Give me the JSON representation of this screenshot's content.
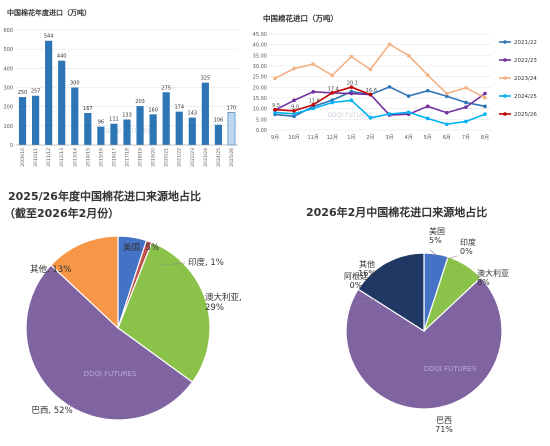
{
  "chart_data": [
    {
      "type": "bar",
      "title": "中国棉花年度进口（万吨）",
      "categories": [
        "2009/10",
        "2010/11",
        "2011/12",
        "2012/13",
        "2013/14",
        "2014/15",
        "2015/16",
        "2016/17",
        "2017/18",
        "2018/19",
        "2019/20",
        "2020/21",
        "2021/22",
        "2022/23",
        "2023/24",
        "2024/25",
        "2025/26"
      ],
      "values": [
        250,
        257,
        544,
        440,
        300,
        167,
        96,
        111,
        133,
        203,
        160,
        275,
        174,
        143,
        325,
        106,
        170
      ],
      "ylim": [
        0,
        600
      ],
      "yticks": [
        0,
        100,
        200,
        300,
        400,
        500,
        600
      ],
      "grid": true,
      "watermark": "DDQI FUTURES",
      "colors": {
        "bar": "#2e75b6",
        "last_bar_fill": "#bdd7ee",
        "last_bar_stroke": "#2e75b6"
      }
    },
    {
      "type": "line",
      "title": "中国棉花进口（万吨）",
      "categories": [
        "9月",
        "10月",
        "11月",
        "12月",
        "1月",
        "2月",
        "3月",
        "4月",
        "5月",
        "6月",
        "7月",
        "8月"
      ],
      "ylim": [
        0,
        45
      ],
      "yticks": [
        "0.00",
        "5.00",
        "10.00",
        "15.00",
        "20.00",
        "25.00",
        "30.00",
        "35.00",
        "40.00",
        "45.00"
      ],
      "legend": "right",
      "grid": true,
      "series": [
        {
          "name": "2021/22",
          "color": "#2e75b6",
          "values": [
            7.3,
            6.4,
            11.0,
            14.0,
            18.0,
            16.6,
            20.2,
            15.9,
            18.4,
            15.8,
            12.9,
            11.1
          ]
        },
        {
          "name": "2022/23",
          "color": "#7030a0",
          "values": [
            9.3,
            13.9,
            17.9,
            17.4,
            17.1,
            16.6,
            7.0,
            7.4,
            11.1,
            8.1,
            10.7,
            17.1
          ]
        },
        {
          "name": "2023/24",
          "color": "#f4b183",
          "values": [
            24.2,
            28.8,
            30.9,
            25.6,
            34.4,
            28.4,
            40.2,
            34.9,
            25.7,
            17.1,
            19.8,
            15.1
          ]
        },
        {
          "name": "2024/25",
          "color": "#00b0f0",
          "values": [
            8.2,
            7.6,
            10.1,
            12.9,
            13.9,
            5.7,
            7.5,
            8.3,
            5.4,
            2.7,
            4.0,
            7.4
          ]
        },
        {
          "name": "2025/26",
          "color": "#c00000",
          "values": [
            9.5,
            9.0,
            11.8,
            17.4,
            20.1,
            16.6
          ]
        }
      ],
      "labels": [
        {
          "series": 4,
          "index": 0,
          "text": "9.5"
        },
        {
          "series": 4,
          "index": 1,
          "text": "9.0"
        },
        {
          "series": 4,
          "index": 2,
          "text": "11.8"
        },
        {
          "series": 4,
          "index": 3,
          "text": "17.4"
        },
        {
          "series": 4,
          "index": 4,
          "text": "20.1"
        },
        {
          "series": 4,
          "index": 5,
          "text": "16.6"
        }
      ]
    },
    {
      "type": "pie",
      "title": "2025/26年度中国棉花进口来源地占比",
      "subtitle": "（截至2026年2月份）",
      "slices": [
        {
          "label": "美国",
          "value": 5,
          "display": "美国, 5%",
          "color": "#4472c4"
        },
        {
          "label": "印度",
          "value": 1,
          "display": "印度, 1%",
          "color": "#c0504d"
        },
        {
          "label": "澳大利亚",
          "value": 29,
          "display": "澳大利亚,\n29%",
          "color": "#8bc34a"
        },
        {
          "label": "巴西",
          "value": 52,
          "display": "巴西, 52%",
          "color": "#8064a2"
        },
        {
          "label": "其他",
          "value": 13,
          "display": "其他, 13%",
          "color": "#f79646"
        }
      ],
      "watermark": "DDQI FUTURES"
    },
    {
      "type": "pie",
      "title": "2026年2月中国棉花进口来源地占比",
      "slices": [
        {
          "label": "美国",
          "value": 5,
          "display": "美国\n5%",
          "color": "#4472c4"
        },
        {
          "label": "印度",
          "value": 0,
          "display": "印度\n0%",
          "color": "#c0504d"
        },
        {
          "label": "澳大利亚",
          "value": 8,
          "display": "澳大利亚\n8%",
          "color": "#8bc34a"
        },
        {
          "label": "巴西",
          "value": 71,
          "display": "巴西\n71%",
          "color": "#8064a2"
        },
        {
          "label": "阿根廷",
          "value": 0,
          "display": "阿根廷\n0%",
          "color": "#9bbb59"
        },
        {
          "label": "其他",
          "value": 16,
          "display": "其他\n16%",
          "color": "#1f3864"
        }
      ],
      "watermark": "DDQI FUTURES"
    }
  ]
}
